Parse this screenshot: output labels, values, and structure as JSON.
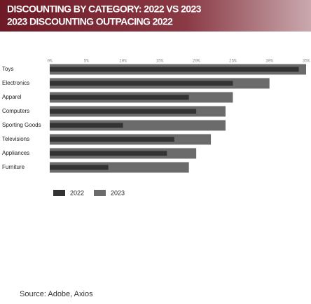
{
  "chart_data": {
    "type": "bar",
    "orientation": "horizontal",
    "title": "DISCOUNTING BY CATEGORY: 2022 VS 2023",
    "subtitle": "2023 DISCOUNTING OUTPACING 2022",
    "categories": [
      "Toys",
      "Electronics",
      "Apparel",
      "Computers",
      "Sporting Goods",
      "Televisions",
      "Appliances",
      "Furniture"
    ],
    "series": [
      {
        "name": "2022",
        "color": "#333333",
        "values": [
          34,
          25,
          19,
          20,
          10,
          17,
          16,
          8
        ]
      },
      {
        "name": "2023",
        "color": "#6b6b6b",
        "values": [
          35,
          30,
          25,
          24,
          24,
          22,
          20,
          19
        ]
      }
    ],
    "xlim": [
      0,
      35
    ],
    "xticks": [
      {
        "value": 0,
        "label": "0%"
      },
      {
        "value": 5,
        "label": "5%"
      },
      {
        "value": 10,
        "label": "10%"
      },
      {
        "value": 15,
        "label": "15%"
      },
      {
        "value": 20,
        "label": "20%"
      },
      {
        "value": 25,
        "label": "25%"
      },
      {
        "value": 30,
        "label": "30%"
      },
      {
        "value": 35,
        "label": "35%"
      }
    ],
    "source": "Source: Adobe, Axios"
  }
}
